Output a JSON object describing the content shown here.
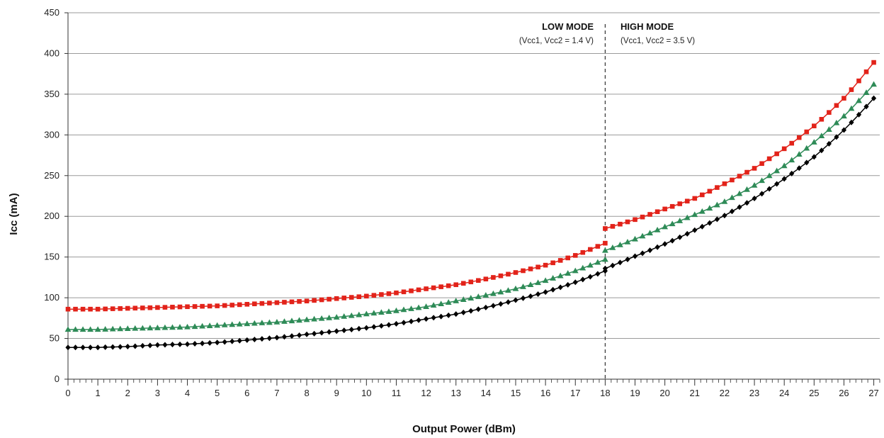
{
  "chart_data": {
    "type": "line",
    "title": "",
    "xlabel": "Output Power (dBm)",
    "ylabel": "Icc (mA)",
    "xlim": [
      0,
      27.2
    ],
    "ylim": [
      0,
      450
    ],
    "x_ticks": [
      "0",
      "1",
      "2",
      "3",
      "4",
      "5",
      "6",
      "7",
      "8",
      "9",
      "10",
      "11",
      "12",
      "13",
      "14",
      "15",
      "16",
      "17",
      "18",
      "19",
      "20",
      "21",
      "22",
      "23",
      "24",
      "25",
      "26",
      "27"
    ],
    "y_ticks": [
      "0",
      "50",
      "100",
      "150",
      "200",
      "250",
      "300",
      "350",
      "400",
      "450"
    ],
    "grid": "horizontal",
    "divider_x": 18,
    "annotations": [
      {
        "title": "LOW MODE",
        "subtitle": "(Vcc1, Vcc2 = 1.4 V)",
        "side": "left"
      },
      {
        "title": "HIGH MODE",
        "subtitle": "(Vcc1, Vcc2 = 3.5 V)",
        "side": "right"
      }
    ],
    "series": [
      {
        "color": "#e2231a",
        "marker": "square",
        "low_mode": [
          [
            0,
            86
          ],
          [
            1,
            86
          ],
          [
            2,
            87
          ],
          [
            3,
            88
          ],
          [
            4,
            89
          ],
          [
            5,
            90
          ],
          [
            6,
            92
          ],
          [
            7,
            94
          ],
          [
            8,
            96
          ],
          [
            9,
            99
          ],
          [
            10,
            102
          ],
          [
            11,
            106
          ],
          [
            12,
            111
          ],
          [
            13,
            116
          ],
          [
            14,
            123
          ],
          [
            15,
            131
          ],
          [
            16,
            140
          ],
          [
            17,
            152
          ],
          [
            18,
            167
          ]
        ],
        "high_mode": [
          [
            18,
            185
          ],
          [
            19,
            196
          ],
          [
            20,
            209
          ],
          [
            21,
            222
          ],
          [
            22,
            240
          ],
          [
            23,
            259
          ],
          [
            24,
            283
          ],
          [
            25,
            311
          ],
          [
            26,
            345
          ],
          [
            27,
            389
          ]
        ]
      },
      {
        "color": "#2e8b57",
        "marker": "triangle",
        "low_mode": [
          [
            0,
            61
          ],
          [
            1,
            61
          ],
          [
            2,
            62
          ],
          [
            3,
            63
          ],
          [
            4,
            64
          ],
          [
            5,
            66
          ],
          [
            6,
            68
          ],
          [
            7,
            70
          ],
          [
            8,
            73
          ],
          [
            9,
            76
          ],
          [
            10,
            80
          ],
          [
            11,
            84
          ],
          [
            12,
            89
          ],
          [
            13,
            96
          ],
          [
            14,
            103
          ],
          [
            15,
            111
          ],
          [
            16,
            121
          ],
          [
            17,
            133
          ],
          [
            18,
            147
          ]
        ],
        "high_mode": [
          [
            18,
            158
          ],
          [
            19,
            172
          ],
          [
            20,
            187
          ],
          [
            21,
            202
          ],
          [
            22,
            218
          ],
          [
            23,
            238
          ],
          [
            24,
            262
          ],
          [
            25,
            291
          ],
          [
            26,
            323
          ],
          [
            27,
            362
          ]
        ]
      },
      {
        "color": "#000000",
        "marker": "diamond",
        "low_mode": [
          [
            0,
            39
          ],
          [
            1,
            39
          ],
          [
            2,
            40
          ],
          [
            3,
            42
          ],
          [
            4,
            43
          ],
          [
            5,
            45
          ],
          [
            6,
            48
          ],
          [
            7,
            51
          ],
          [
            8,
            55
          ],
          [
            9,
            59
          ],
          [
            10,
            63
          ],
          [
            11,
            68
          ],
          [
            12,
            74
          ],
          [
            13,
            80
          ],
          [
            14,
            88
          ],
          [
            15,
            97
          ],
          [
            16,
            107
          ],
          [
            17,
            119
          ],
          [
            18,
            133
          ]
        ],
        "high_mode": [
          [
            18,
            136
          ],
          [
            19,
            151
          ],
          [
            20,
            166
          ],
          [
            21,
            183
          ],
          [
            22,
            201
          ],
          [
            23,
            222
          ],
          [
            24,
            246
          ],
          [
            25,
            273
          ],
          [
            26,
            306
          ],
          [
            27,
            345
          ]
        ]
      }
    ]
  }
}
